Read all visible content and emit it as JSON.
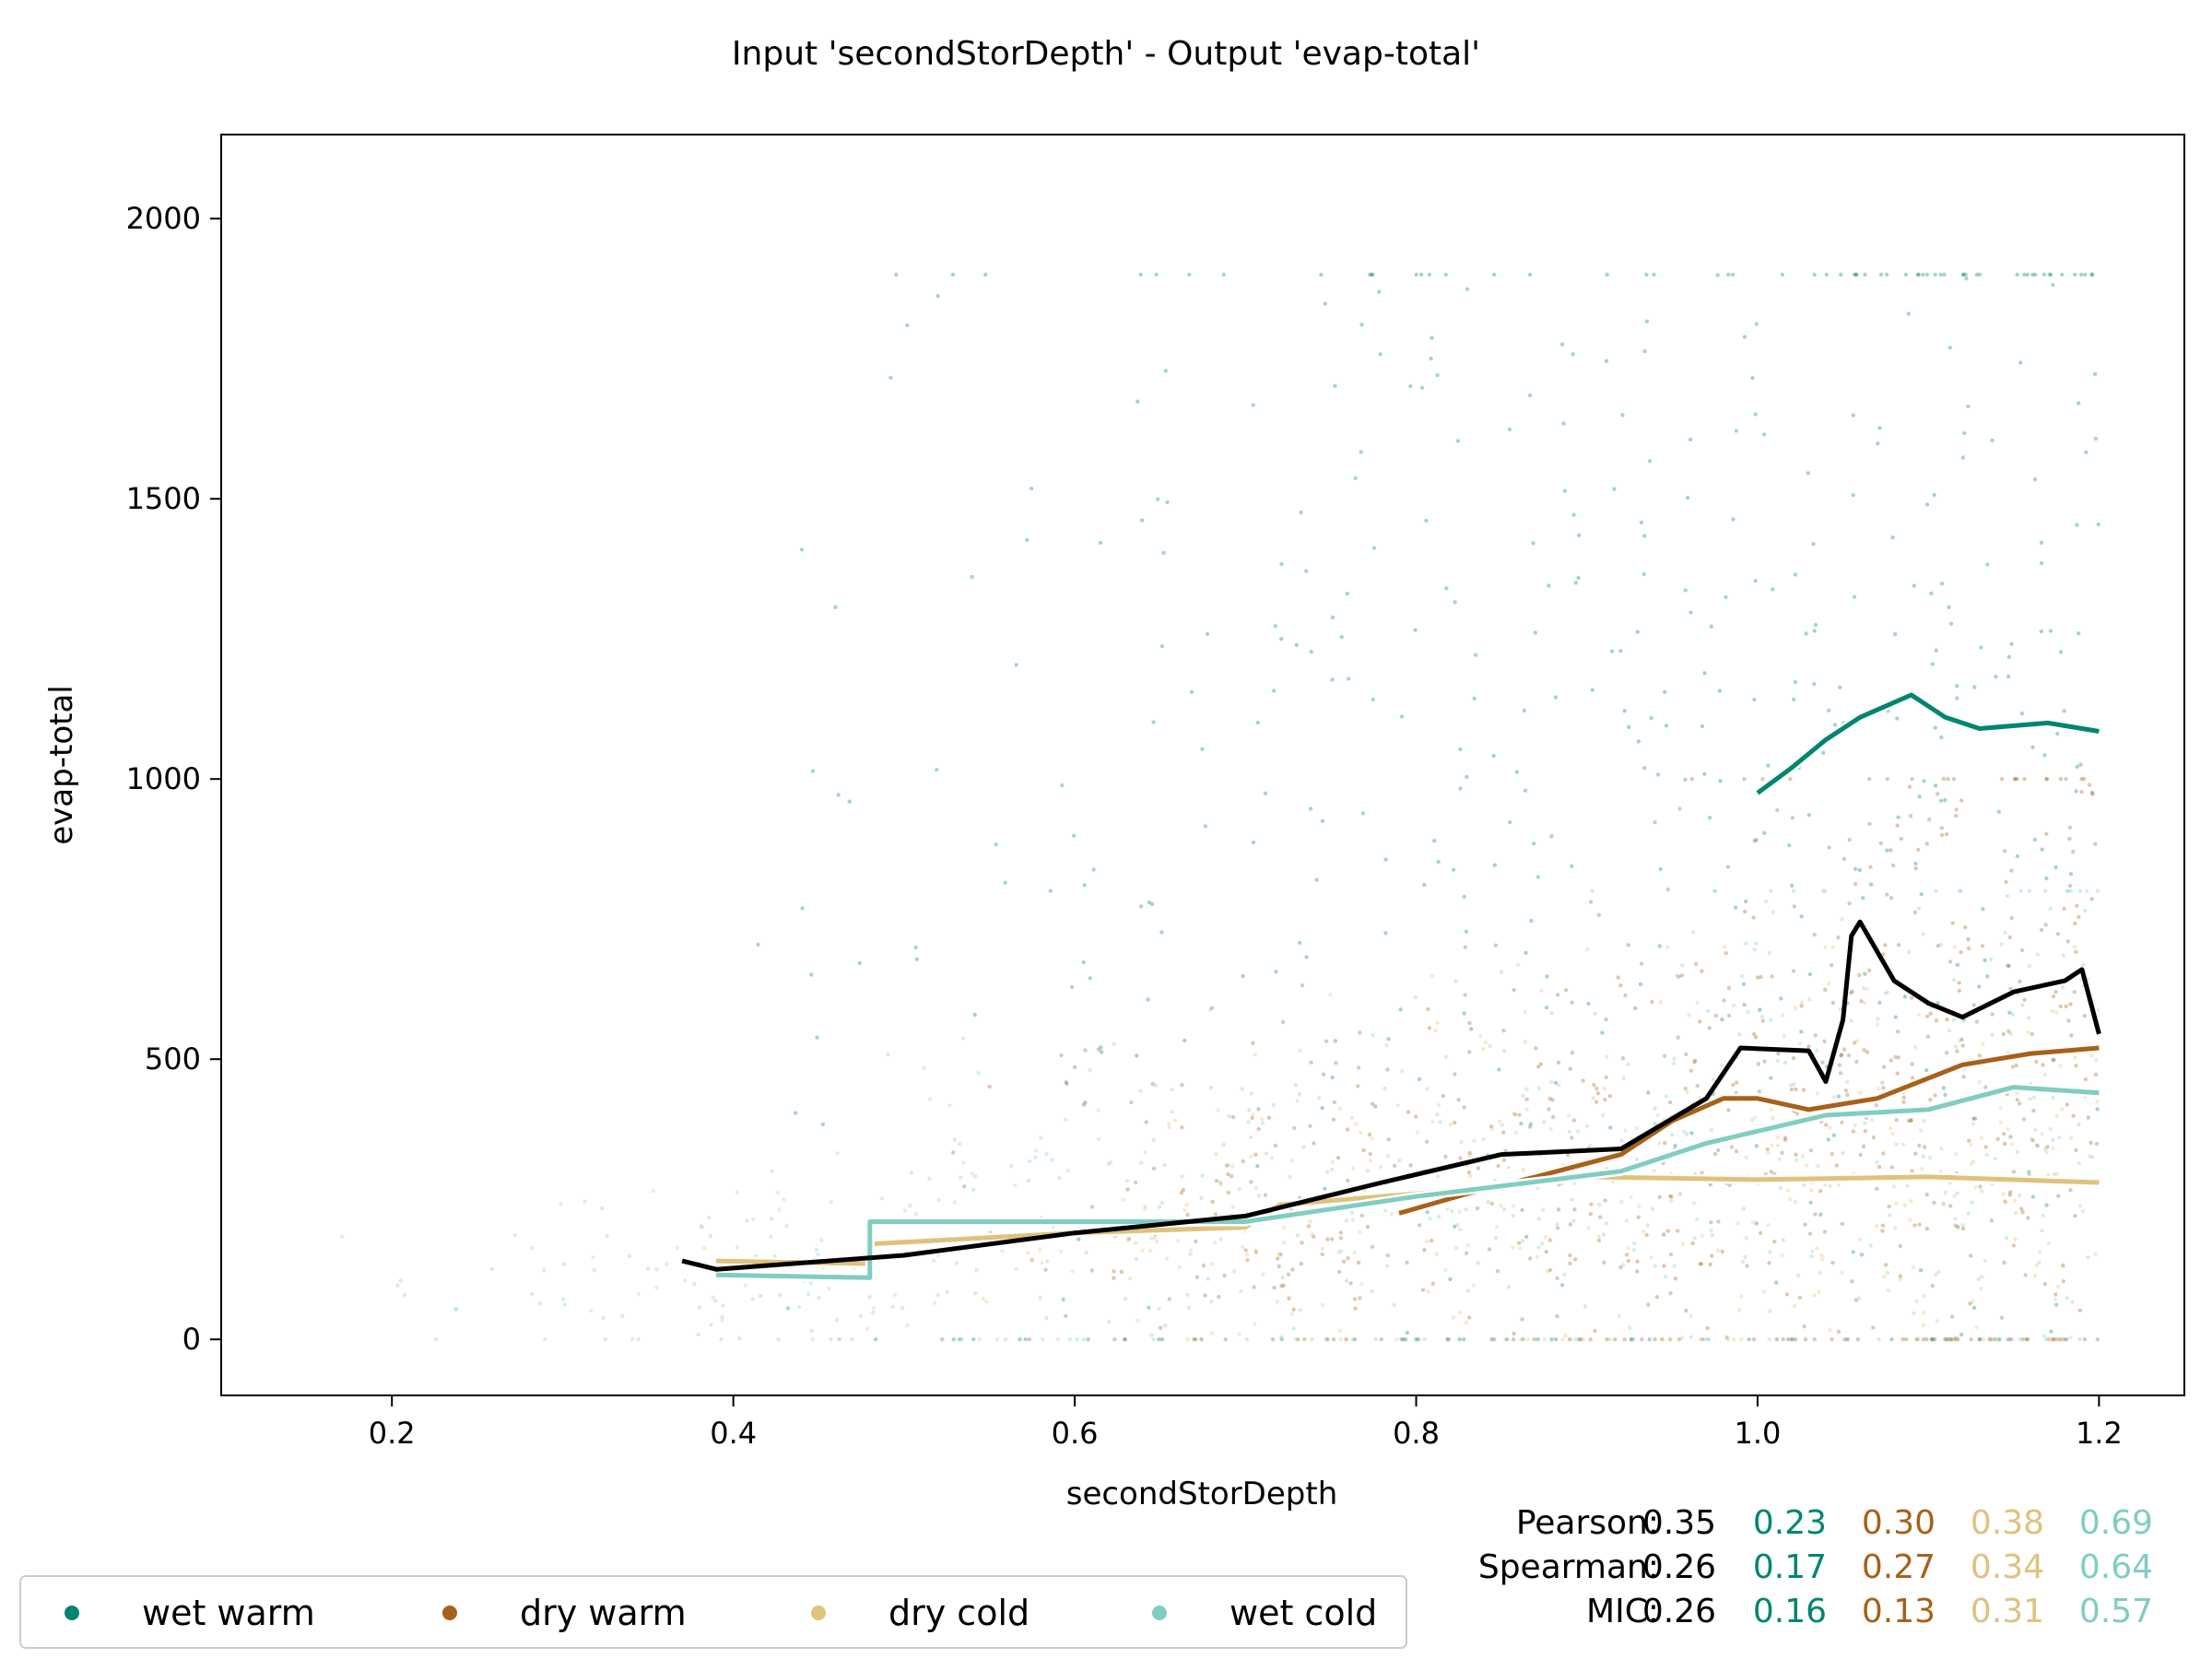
{
  "chart_data": {
    "type": "scatter",
    "title": "Input 'secondStorDepth' - Output 'evap-total'",
    "xlabel": "secondStorDepth",
    "ylabel": "evap-total",
    "xlim": [
      0.1,
      1.25
    ],
    "ylim": [
      -100,
      2150
    ],
    "xticks": [
      0.2,
      0.4,
      0.6,
      0.8,
      1.0,
      1.2
    ],
    "xtick_labels": [
      "0.2",
      "0.4",
      "0.6",
      "0.8",
      "1.0",
      "1.2"
    ],
    "yticks": [
      0,
      500,
      1000,
      1500,
      2000
    ],
    "ytick_labels": [
      "0",
      "500",
      "1000",
      "1500",
      "2000"
    ],
    "grid": false,
    "legend_position": "bottom-left",
    "colors": {
      "overall": "#000000",
      "wet warm": "#018571",
      "dry warm": "#a6611a",
      "dry cold": "#dfc27d",
      "wet cold": "#80cdc1"
    },
    "series": [
      {
        "name": "wet warm",
        "color": "#018571",
        "trend": [
          [
            1.0,
            975
          ],
          [
            1.02,
            1020
          ],
          [
            1.04,
            1070
          ],
          [
            1.06,
            1110
          ],
          [
            1.09,
            1150
          ],
          [
            1.11,
            1110
          ],
          [
            1.13,
            1090
          ],
          [
            1.17,
            1100
          ],
          [
            1.2,
            1085
          ]
        ],
        "scatter_range": {
          "x": [
            0.4,
            1.2
          ],
          "y": [
            0,
            1900
          ],
          "count": 500
        }
      },
      {
        "name": "dry warm",
        "color": "#a6611a",
        "trend": [
          [
            0.79,
            225
          ],
          [
            0.83,
            260
          ],
          [
            0.87,
            290
          ],
          [
            0.92,
            330
          ],
          [
            0.95,
            390
          ],
          [
            0.98,
            430
          ],
          [
            1.0,
            430
          ],
          [
            1.03,
            410
          ],
          [
            1.07,
            430
          ],
          [
            1.12,
            490
          ],
          [
            1.16,
            510
          ],
          [
            1.2,
            520
          ]
        ],
        "scatter_range": {
          "x": [
            0.5,
            1.2
          ],
          "y": [
            0,
            1000
          ],
          "count": 700
        }
      },
      {
        "name": "dry cold",
        "color": "#dfc27d",
        "trend": [
          [
            0.39,
            140
          ],
          [
            0.48,
            135
          ],
          [
            0.48,
            170
          ],
          [
            0.6,
            190
          ],
          [
            0.7,
            200
          ],
          [
            0.72,
            240
          ],
          [
            0.8,
            260
          ],
          [
            0.9,
            290
          ],
          [
            1.0,
            285
          ],
          [
            1.1,
            290
          ],
          [
            1.2,
            280
          ]
        ],
        "scatter_range": {
          "x": [
            0.28,
            1.2
          ],
          "y": [
            0,
            700
          ],
          "count": 450
        }
      },
      {
        "name": "wet cold",
        "color": "#80cdc1",
        "trend": [
          [
            0.39,
            115
          ],
          [
            0.48,
            110
          ],
          [
            0.48,
            210
          ],
          [
            0.7,
            210
          ],
          [
            0.8,
            255
          ],
          [
            0.92,
            300
          ],
          [
            0.97,
            350
          ],
          [
            1.04,
            400
          ],
          [
            1.1,
            410
          ],
          [
            1.15,
            450
          ],
          [
            1.2,
            440
          ]
        ],
        "scatter_range": {
          "x": [
            0.15,
            1.2
          ],
          "y": [
            0,
            800
          ],
          "count": 450
        }
      },
      {
        "name": "overall",
        "color": "#000000",
        "trend": [
          [
            0.37,
            140
          ],
          [
            0.39,
            125
          ],
          [
            0.5,
            150
          ],
          [
            0.6,
            190
          ],
          [
            0.7,
            220
          ],
          [
            0.78,
            280
          ],
          [
            0.85,
            330
          ],
          [
            0.92,
            340
          ],
          [
            0.97,
            430
          ],
          [
            0.99,
            520
          ],
          [
            1.03,
            515
          ],
          [
            1.04,
            460
          ],
          [
            1.05,
            570
          ],
          [
            1.055,
            720
          ],
          [
            1.06,
            745
          ],
          [
            1.08,
            640
          ],
          [
            1.1,
            600
          ],
          [
            1.12,
            575
          ],
          [
            1.15,
            620
          ],
          [
            1.18,
            640
          ],
          [
            1.19,
            660
          ],
          [
            1.2,
            545
          ]
        ],
        "scatter_range": null
      }
    ],
    "stats": {
      "rows": [
        "Pearson:",
        "Spearman:",
        "MIC:"
      ],
      "values": [
        [
          "0.35",
          "0.23",
          "0.30",
          "0.38",
          "0.69"
        ],
        [
          "0.26",
          "0.17",
          "0.27",
          "0.34",
          "0.64"
        ],
        [
          "0.26",
          "0.16",
          "0.13",
          "0.31",
          "0.57"
        ]
      ],
      "colors": [
        "#000000",
        "#018571",
        "#a6611a",
        "#dfc27d",
        "#80cdc1"
      ]
    },
    "legend": [
      {
        "label": "wet warm",
        "color": "#018571"
      },
      {
        "label": "dry warm",
        "color": "#a6611a"
      },
      {
        "label": "dry cold",
        "color": "#dfc27d"
      },
      {
        "label": "wet cold",
        "color": "#80cdc1"
      }
    ]
  }
}
